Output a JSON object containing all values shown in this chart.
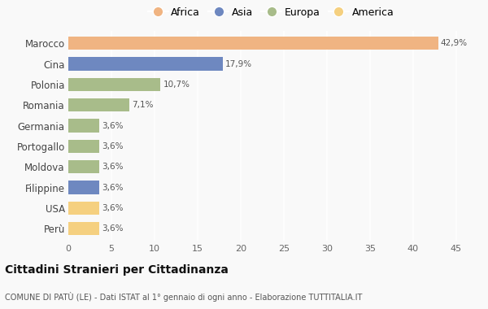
{
  "categories": [
    "Marocco",
    "Cina",
    "Polonia",
    "Romania",
    "Germania",
    "Portogallo",
    "Moldova",
    "Filippine",
    "USA",
    "Perù"
  ],
  "values": [
    42.9,
    17.9,
    10.7,
    7.1,
    3.6,
    3.6,
    3.6,
    3.6,
    3.6,
    3.6
  ],
  "labels": [
    "42,9%",
    "17,9%",
    "10,7%",
    "7,1%",
    "3,6%",
    "3,6%",
    "3,6%",
    "3,6%",
    "3,6%",
    "3,6%"
  ],
  "colors": [
    "#F0B482",
    "#6E88C0",
    "#A8BC8A",
    "#A8BC8A",
    "#A8BC8A",
    "#A8BC8A",
    "#A8BC8A",
    "#6E88C0",
    "#F5D080",
    "#F5D080"
  ],
  "legend": [
    {
      "label": "Africa",
      "color": "#F0B482"
    },
    {
      "label": "Asia",
      "color": "#6E88C0"
    },
    {
      "label": "Europa",
      "color": "#A8BC8A"
    },
    {
      "label": "America",
      "color": "#F5D080"
    }
  ],
  "xlim": [
    0,
    47
  ],
  "xticks": [
    0,
    5,
    10,
    15,
    20,
    25,
    30,
    35,
    40,
    45
  ],
  "title": "Cittadini Stranieri per Cittadinanza",
  "subtitle": "COMUNE DI PATÙ (LE) - Dati ISTAT al 1° gennaio di ogni anno - Elaborazione TUTTITALIA.IT",
  "bg_color": "#f9f9f9",
  "grid_color": "#ffffff",
  "bar_height": 0.65
}
